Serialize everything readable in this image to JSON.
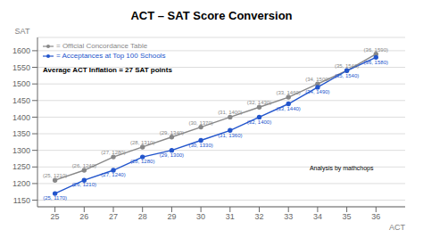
{
  "chart_data": {
    "type": "line",
    "title": "ACT – SAT Score Conversion",
    "xlabel": "ACT",
    "ylabel": "SAT",
    "x": [
      25,
      26,
      27,
      28,
      29,
      30,
      31,
      32,
      33,
      34,
      35,
      36
    ],
    "series": [
      {
        "name": "= Official Concordance Table",
        "color": "#888888",
        "marker": "o",
        "values": [
          1210,
          1240,
          1280,
          1310,
          1340,
          1370,
          1400,
          1430,
          1460,
          1500,
          1540,
          1590
        ],
        "value_labels": [
          "(25, 1210)",
          "(26, 1240)",
          "(27, 1280)",
          "(28, 1310)",
          "(29, 1340)",
          "(30, 1370)",
          "(31, 1400)",
          "(32, 1430)",
          "(33, 1460)",
          "(34, 1500)",
          "(35, 1540)",
          "(36, 1590)"
        ]
      },
      {
        "name": "= Acceptances at Top 100 Schools",
        "color": "#2255cc",
        "marker": "o",
        "values": [
          1170,
          1210,
          1240,
          1280,
          1300,
          1330,
          1360,
          1400,
          1440,
          1490,
          1540,
          1580
        ],
        "value_labels": [
          "(25, 1170)",
          "(26, 1210)",
          "(27, 1240)",
          "(28, 1280)",
          "(29, 1300)",
          "(30, 1330)",
          "(31, 1360)",
          "(32, 1400)",
          "(33, 1440)",
          "(34, 1490)",
          "(35, 1540)",
          "(36, 1580)"
        ]
      }
    ],
    "data_labels": true,
    "annotations": [
      "Average ACT Inflation = 27 SAT points",
      "Analysis by mathchops"
    ],
    "xlim": [
      24.4,
      37.0
    ],
    "ylim": [
      1130,
      1640
    ],
    "xticks": [
      25,
      26,
      27,
      28,
      29,
      30,
      31,
      32,
      33,
      34,
      35,
      36
    ],
    "yticks": [
      1150,
      1200,
      1250,
      1300,
      1350,
      1400,
      1450,
      1500,
      1550,
      1600
    ],
    "grid": true,
    "legend": "upper left"
  }
}
